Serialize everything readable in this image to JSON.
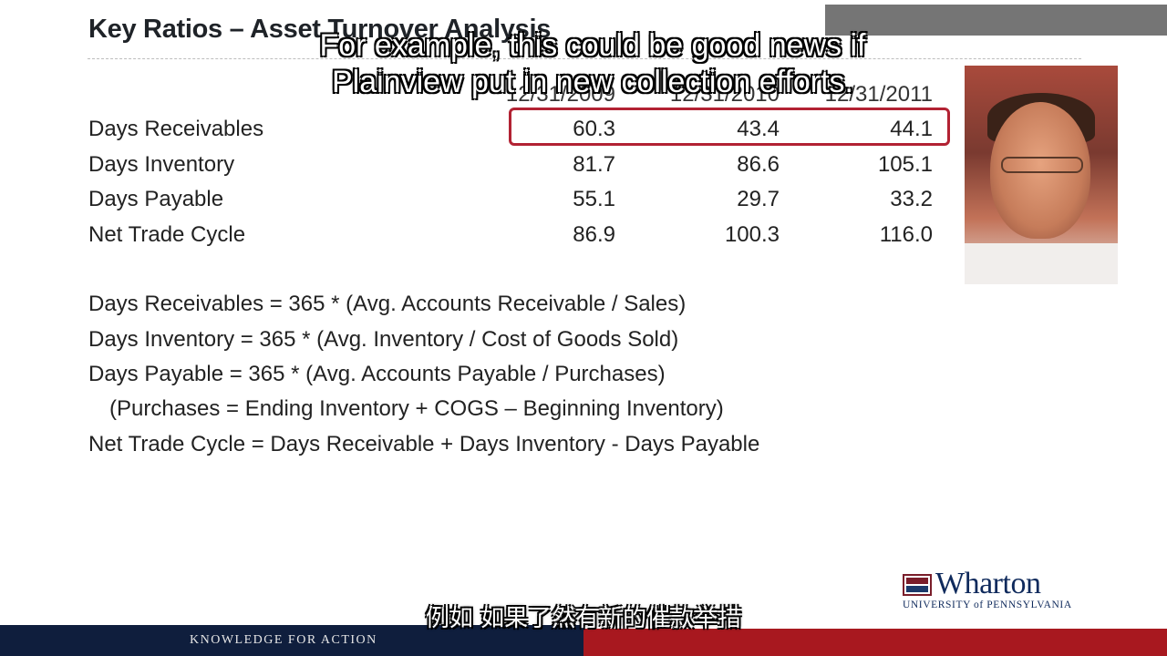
{
  "slide": {
    "title": "Key Ratios – Asset Turnover Analysis"
  },
  "table": {
    "columns": [
      "12/31/2009",
      "12/31/2010",
      "12/31/2011"
    ],
    "rows": [
      {
        "label": "Days Receivables",
        "values": [
          "60.3",
          "43.4",
          "44.1"
        ]
      },
      {
        "label": "Days Inventory",
        "values": [
          "81.7",
          "86.6",
          "105.1"
        ]
      },
      {
        "label": "Days Payable",
        "values": [
          "55.1",
          "29.7",
          "33.2"
        ]
      },
      {
        "label": "Net Trade Cycle",
        "values": [
          "86.9",
          "100.3",
          "116.0"
        ]
      }
    ]
  },
  "formulas": [
    "Days Receivables =  365 * (Avg. Accounts Receivable / Sales)",
    "Days Inventory = 365 * (Avg. Inventory / Cost of Goods Sold)",
    "Days Payable = 365 * (Avg. Accounts Payable / Purchases)",
    "(Purchases = Ending Inventory + COGS – Beginning Inventory)",
    "Net Trade Cycle = Days Receivable + Days Inventory - Days Payable"
  ],
  "subtitles": {
    "english": "For example, this could be good news if Plainview put in new collection efforts.",
    "chinese": "例如 如果了然有新的催款举措"
  },
  "branding": {
    "logo_word": "Wharton",
    "logo_sub": "UNIVERSITY of PENNSYLVANIA",
    "footer_tagline": "KNOWLEDGE FOR ACTION"
  },
  "colors": {
    "highlight_box": "#b22233",
    "footer_blue": "#0f1e3d",
    "footer_red": "#a8181f",
    "wharton_navy": "#0f2a5c"
  }
}
